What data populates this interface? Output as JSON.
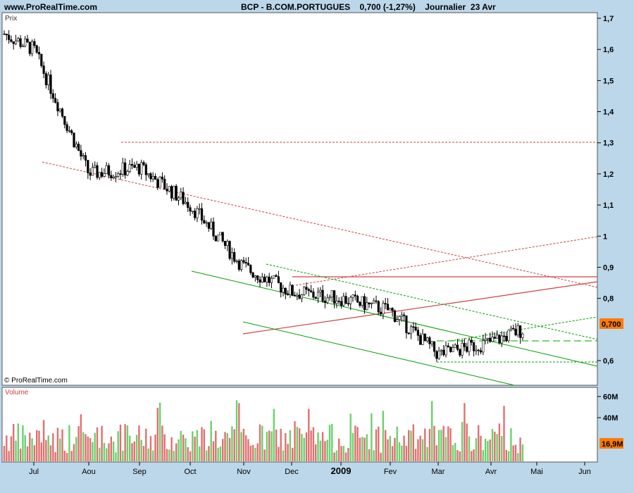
{
  "header": {
    "site": "www.ProRealTime.com",
    "symbol": "BCP - B.COM.PORTUGUES",
    "last": "0,700 (-1,27%)",
    "period": "Journalier  23 Avr"
  },
  "price_panel": {
    "label": "Prix",
    "copyright": "© ProRealTime.com",
    "y_ticks": [
      "1,7",
      "1,6",
      "1,5",
      "1,4",
      "1,3",
      "1,2",
      "1,1",
      "1",
      "0,9",
      "0,8",
      "0,6"
    ],
    "y_tick_values": [
      1.7,
      1.6,
      1.5,
      1.4,
      1.3,
      1.2,
      1.1,
      1.0,
      0.9,
      0.8,
      0.6
    ],
    "last_price_badge": "0,700"
  },
  "volume_panel": {
    "label": "Volume",
    "y_ticks": [
      "60M",
      "40M"
    ],
    "last_volume_badge": "16,9M"
  },
  "x_axis": {
    "ticks": [
      "Jul",
      "Aou",
      "Sep",
      "Oct",
      "Nov",
      "Dec",
      "2009",
      "Fev",
      "Mar",
      "Avr",
      "Mai",
      "Jun"
    ]
  },
  "colors": {
    "up": "#00b000",
    "down": "#d04040",
    "vol_up": "#6cd16c",
    "vol_down": "#e07070",
    "badge": "#ff7a00",
    "panel_bg": "#ffffff",
    "frame_bg": "#bcd7ea"
  },
  "chart_data": {
    "type": "candlestick",
    "price_ylim": [
      0.52,
      1.72
    ],
    "volume_ylim": [
      0,
      70
    ],
    "volume_unit": "M",
    "approx_path": [
      [
        "Jul",
        1.6
      ],
      [
        "Aou",
        1.2
      ],
      [
        "Sep",
        1.22
      ],
      [
        "Oct",
        1.1
      ],
      [
        "Nov",
        0.9
      ],
      [
        "Dec",
        0.82
      ],
      [
        "2009",
        0.8
      ],
      [
        "Fev",
        0.76
      ],
      [
        "Mar",
        0.62
      ],
      [
        "Avr",
        0.66
      ],
      [
        "23 Avr",
        0.7
      ]
    ],
    "last_close": 0.7,
    "last_volume": 16.9
  }
}
